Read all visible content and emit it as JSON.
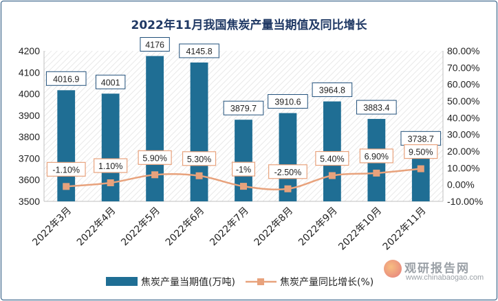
{
  "chart_data": {
    "type": "bar+line",
    "title": "2022年11月我国焦炭产量当期值及同比增长",
    "categories": [
      "2022年3月",
      "2022年4月",
      "2022年5月",
      "2022年6月",
      "2022年7月",
      "2022年8月",
      "2022年9月",
      "2022年10月",
      "2022年11月"
    ],
    "series": [
      {
        "name": "焦炭产量当期值(万吨)",
        "type": "bar",
        "axis": "left",
        "color": "#1f6e94",
        "values": [
          4016.9,
          4001,
          4176,
          4145.8,
          3879.7,
          3910.6,
          3964.8,
          3883.4,
          3738.7
        ],
        "labels": [
          "4016.9",
          "4001",
          "4176",
          "4145.8",
          "3879.7",
          "3910.6",
          "3964.8",
          "3883.4",
          "3738.7"
        ]
      },
      {
        "name": "焦炭产量同比增长(%)",
        "type": "line",
        "axis": "right",
        "color": "#e8a27c",
        "values": [
          -1.1,
          1.1,
          5.9,
          5.3,
          -1,
          -2.5,
          5.4,
          6.9,
          9.5
        ],
        "labels": [
          "-1.10%",
          "1.10%",
          "5.90%",
          "5.30%",
          "-1%",
          "-2.50%",
          "5.40%",
          "6.90%",
          "9.50%"
        ]
      }
    ],
    "y_left": {
      "min": 3500,
      "max": 4200,
      "ticks": [
        "3500",
        "3600",
        "3700",
        "3800",
        "3900",
        "4000",
        "4100",
        "4200"
      ]
    },
    "y_right": {
      "min": -10,
      "max": 80,
      "ticks": [
        "-10.00%",
        "0.00%",
        "10.00%",
        "20.00%",
        "30.00%",
        "40.00%",
        "50.00%",
        "60.00%",
        "70.00%",
        "80.00%"
      ]
    },
    "legend_position": "bottom",
    "grid": false
  },
  "watermark": {
    "cn": "观研报告网",
    "en": "www.chinabaogao.com"
  }
}
